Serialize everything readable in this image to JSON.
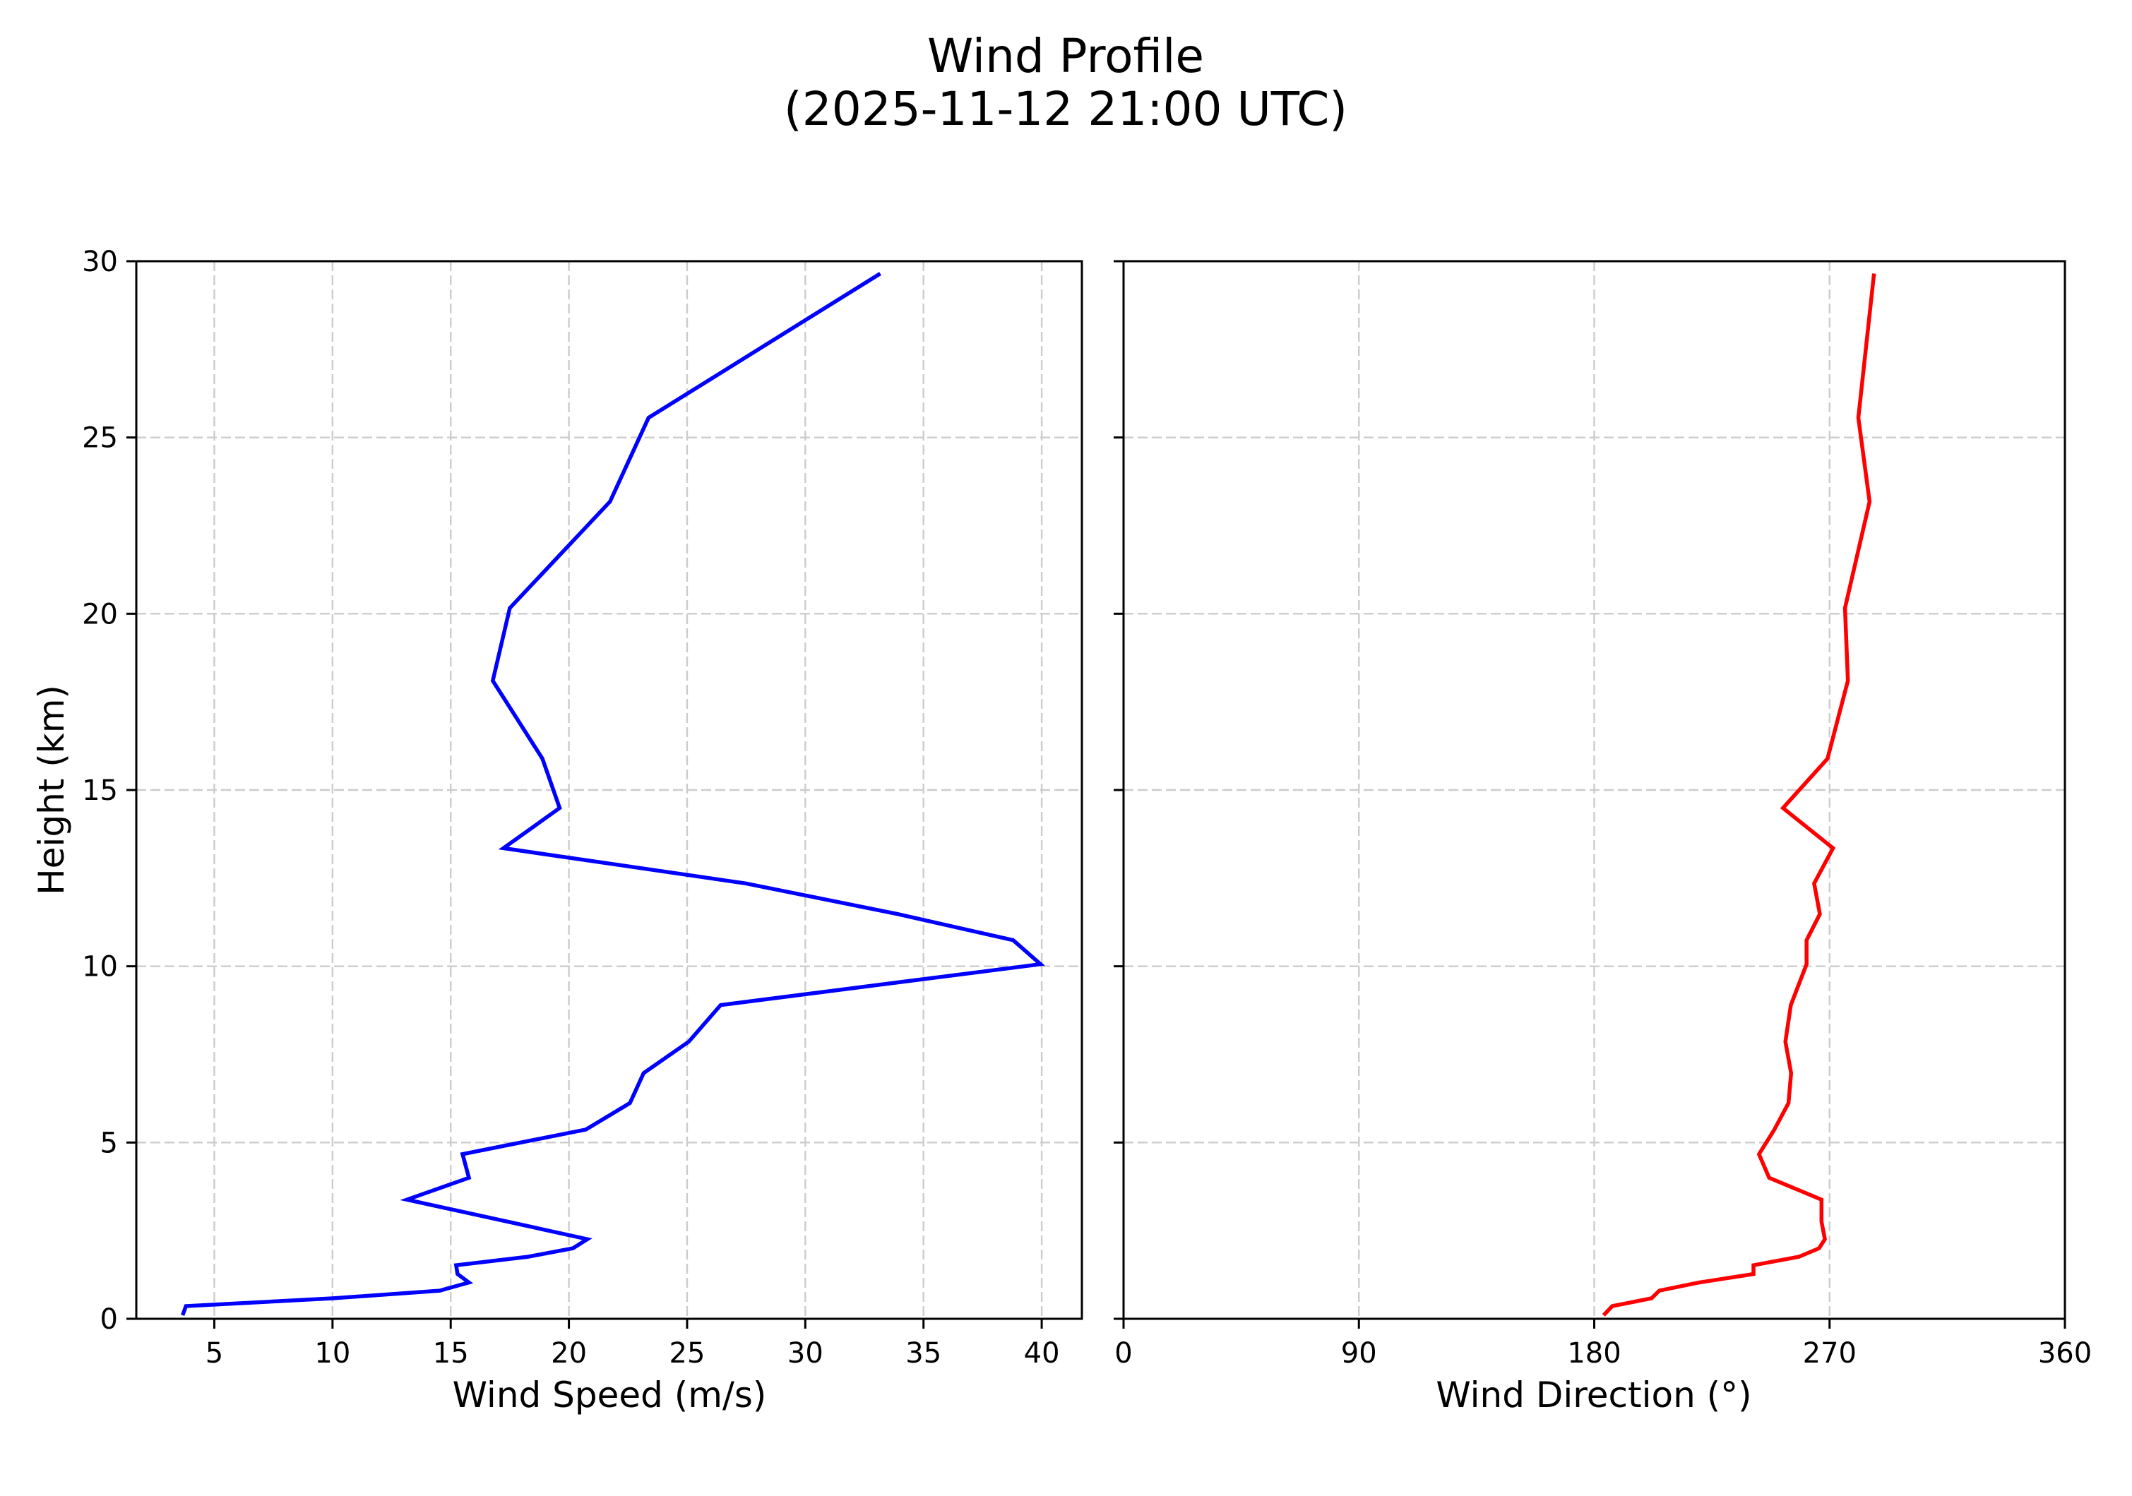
{
  "figure": {
    "title_line1": "Wind Profile",
    "title_line2": "(2025-11-12 21:00 UTC)"
  },
  "left_panel": {
    "xlabel": "Wind Speed (m/s)",
    "ylabel": "Height (km)",
    "line_color": "#0000ff"
  },
  "right_panel": {
    "xlabel": "Wind Direction (°)",
    "line_color": "#ff0000"
  },
  "chart_data": [
    {
      "type": "line",
      "title": "Wind Profile (2025-11-12 21:00 UTC)",
      "xlabel": "Wind Speed (m/s)",
      "ylabel": "Height (km)",
      "xlim": [
        1.7,
        41.7
      ],
      "ylim": [
        0,
        30
      ],
      "xticks": [
        5,
        10,
        15,
        20,
        25,
        30,
        35,
        40
      ],
      "yticks": [
        0,
        5,
        10,
        15,
        20,
        25,
        30
      ],
      "grid": true,
      "legend": null,
      "series": [
        {
          "name": "Wind Speed",
          "color": "#0000ff",
          "x": [
            3.66,
            3.8,
            10.0,
            14.54,
            15.77,
            15.29,
            15.23,
            18.27,
            20.17,
            20.78,
            17.38,
            13.15,
            15.77,
            15.5,
            20.72,
            22.58,
            23.16,
            25.07,
            26.42,
            39.95,
            38.79,
            33.92,
            27.48,
            17.23,
            19.61,
            18.88,
            16.78,
            17.5,
            21.74,
            23.37,
            33.17
          ],
          "y": [
            0.1,
            0.36,
            0.58,
            0.8,
            1.03,
            1.27,
            1.52,
            1.76,
            2.0,
            2.26,
            2.76,
            3.38,
            4.0,
            4.67,
            5.37,
            6.12,
            6.97,
            7.86,
            8.9,
            10.06,
            10.74,
            11.48,
            12.35,
            13.35,
            14.49,
            15.89,
            18.1,
            20.16,
            23.18,
            25.56,
            29.65
          ]
        }
      ]
    },
    {
      "type": "line",
      "title": "",
      "xlabel": "Wind Direction (°)",
      "ylabel": "",
      "xlim": [
        0,
        360
      ],
      "ylim": [
        0,
        30
      ],
      "xticks": [
        0,
        90,
        180,
        270,
        360
      ],
      "yticks": [
        0,
        5,
        10,
        15,
        20,
        25,
        30
      ],
      "shared_y": true,
      "grid": true,
      "legend": null,
      "series": [
        {
          "name": "Wind Direction",
          "color": "#ff0000",
          "x": [
            183.6,
            186.9,
            201.9,
            204.9,
            220.1,
            240.9,
            240.9,
            258.3,
            266.0,
            268.2,
            266.9,
            266.9,
            246.9,
            243.0,
            248.9,
            254.3,
            255.3,
            253.1,
            255.2,
            261.2,
            261.2,
            266.3,
            264.1,
            271.3,
            252.2,
            269.2,
            277.0,
            275.9,
            285.3,
            281.0,
            287.0
          ],
          "y": [
            0.1,
            0.36,
            0.58,
            0.8,
            1.03,
            1.27,
            1.52,
            1.76,
            2.0,
            2.26,
            2.76,
            3.38,
            4.0,
            4.67,
            5.37,
            6.12,
            6.97,
            7.86,
            8.9,
            10.06,
            10.74,
            11.48,
            12.35,
            13.35,
            14.49,
            15.89,
            18.1,
            20.16,
            23.18,
            25.56,
            29.65
          ]
        }
      ]
    }
  ]
}
